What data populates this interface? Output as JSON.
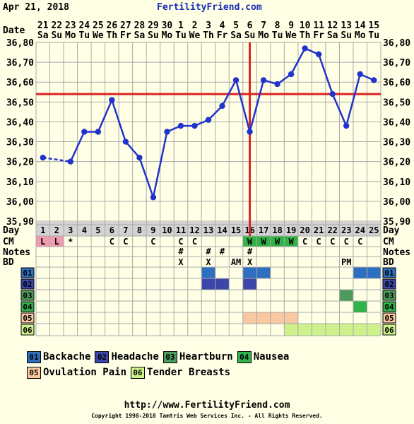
{
  "header": {
    "date": "Apr 21, 2018",
    "brand": "FertilityFriend.com"
  },
  "colors": {
    "background": "#ffffe6",
    "grid": "#a9a9a9",
    "line": "#2233cc",
    "coverline": "#dd2222",
    "ovulation": "#dd2222",
    "grey_band": "#d3d3d3",
    "cm_pink": "#f09bb0",
    "cm_green": "#32b347",
    "sym01": "#2e6fbf",
    "sym02": "#3c46a8",
    "sym03": "#4c9a5c",
    "sym04": "#2fb24a",
    "sym05": "#f8c8a0",
    "sym06": "#cdf28c"
  },
  "chart_data": {
    "type": "line",
    "title": "",
    "ylim": [
      35.9,
      36.8
    ],
    "y_ticks": [
      "36,80",
      "36,70",
      "36,60",
      "36,50",
      "36,40",
      "36,30",
      "36,20",
      "36,10",
      "36,00",
      "35,90"
    ],
    "date_nums": [
      "21",
      "22",
      "23",
      "24",
      "25",
      "26",
      "27",
      "28",
      "29",
      "30",
      "1",
      "2",
      "3",
      "4",
      "5",
      "6",
      "7",
      "8",
      "9",
      "10",
      "11",
      "12",
      "13",
      "14",
      "15"
    ],
    "date_days": [
      "Sa",
      "Su",
      "Mo",
      "Tu",
      "We",
      "Th",
      "Fr",
      "Sa",
      "Su",
      "Mo",
      "Tu",
      "We",
      "Th",
      "Fr",
      "Sa",
      "Su",
      "Mo",
      "Tu",
      "We",
      "Th",
      "Fr",
      "Sa",
      "Su",
      "Mo",
      "Tu"
    ],
    "cycle_days": [
      "1",
      "2",
      "3",
      "4",
      "5",
      "6",
      "7",
      "8",
      "9",
      "10",
      "11",
      "12",
      "13",
      "14",
      "15",
      "16",
      "17",
      "18",
      "19",
      "20",
      "21",
      "22",
      "23",
      "24",
      "25"
    ],
    "temps": [
      36.22,
      null,
      36.2,
      36.35,
      36.35,
      36.51,
      36.3,
      36.22,
      36.02,
      36.35,
      36.38,
      36.38,
      36.41,
      36.48,
      36.61,
      36.35,
      36.61,
      36.59,
      36.64,
      36.77,
      36.74,
      36.54,
      36.38,
      36.64,
      36.61
    ],
    "coverline": 36.54,
    "ovulation_day": 16,
    "row_labels": {
      "date": "Date",
      "day": "Day",
      "cm": "CM",
      "notes": "Notes",
      "bd": "BD"
    },
    "cm": [
      "L",
      "L",
      "*",
      "",
      "",
      "C",
      "C",
      "",
      "C",
      "",
      "C",
      "C",
      "",
      "",
      "",
      "W",
      "W",
      "W",
      "W",
      "C",
      "C",
      "C",
      "C",
      "C",
      ""
    ],
    "cm_colors": [
      "pink",
      "pink",
      "",
      "",
      "",
      "",
      "",
      "",
      "",
      "",
      "",
      "",
      "",
      "",
      "",
      "green",
      "green",
      "green",
      "green",
      "",
      "",
      "",
      "",
      "",
      ""
    ],
    "notes": [
      "",
      "",
      "",
      "",
      "",
      "",
      "",
      "",
      "",
      "",
      "#",
      "",
      "#",
      "#",
      "",
      "#",
      "",
      "",
      "",
      "",
      "",
      "",
      "",
      "",
      ""
    ],
    "bd": [
      "",
      "",
      "",
      "",
      "",
      "",
      "",
      "",
      "",
      "",
      "X",
      "",
      "X",
      "",
      "AM",
      "X",
      "",
      "",
      "",
      "",
      "",
      "",
      "PM",
      "",
      ""
    ],
    "symptom_codes": [
      "01",
      "02",
      "03",
      "04",
      "05",
      "06"
    ],
    "symptom_days": {
      "01": [
        13,
        16,
        17,
        24,
        25
      ],
      "02": [
        13,
        14,
        16
      ],
      "03": [
        23
      ],
      "04": [
        24
      ],
      "05": [
        16,
        17,
        18,
        19
      ],
      "06": [
        19,
        20,
        21,
        22,
        23,
        24,
        25
      ]
    },
    "legend": [
      {
        "code": "01",
        "label": "Backache"
      },
      {
        "code": "02",
        "label": "Headache"
      },
      {
        "code": "03",
        "label": "Heartburn"
      },
      {
        "code": "04",
        "label": "Nausea"
      },
      {
        "code": "05",
        "label": "Ovulation Pain"
      },
      {
        "code": "06",
        "label": "Tender Breasts"
      }
    ]
  },
  "footer": {
    "url": "http://www.FertilityFriend.com",
    "copyright": "Copyright 1998-2018 Tamtris Web Services Inc. - All Rights Reserved."
  }
}
